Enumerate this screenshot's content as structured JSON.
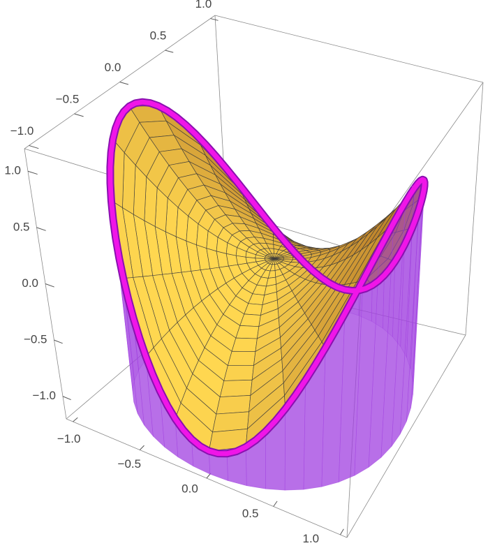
{
  "chart_data": {
    "type": "surface3d",
    "xlim": [
      -1.05,
      1.05
    ],
    "ylim": [
      -1.05,
      1.05
    ],
    "zlim": [
      -1.2,
      1.2
    ],
    "xticks": [
      {
        "value": -1,
        "label": "−1.0"
      },
      {
        "value": -0.5,
        "label": "−0.5"
      },
      {
        "value": 0,
        "label": "0.0"
      },
      0.5,
      {
        "value": 1,
        "label": "1.0"
      }
    ],
    "yticks": [
      {
        "value": -1,
        "label": "−1.0"
      },
      {
        "value": -0.5,
        "label": "−0.5"
      },
      {
        "value": 0,
        "label": "0.0"
      },
      0.5,
      {
        "value": 1,
        "label": "1.0"
      }
    ],
    "zticks": [
      {
        "value": -1,
        "label": "−1.0"
      },
      {
        "value": -0.5,
        "label": "−0.5"
      },
      {
        "value": 0,
        "label": "0.0"
      },
      0.5,
      {
        "value": 1,
        "label": "1.0"
      }
    ],
    "surface_color": "#f7a832",
    "mesh_color": "#3a3a3a",
    "rim_color": "#f015e8",
    "cylinder_color": "#a040e0"
  }
}
